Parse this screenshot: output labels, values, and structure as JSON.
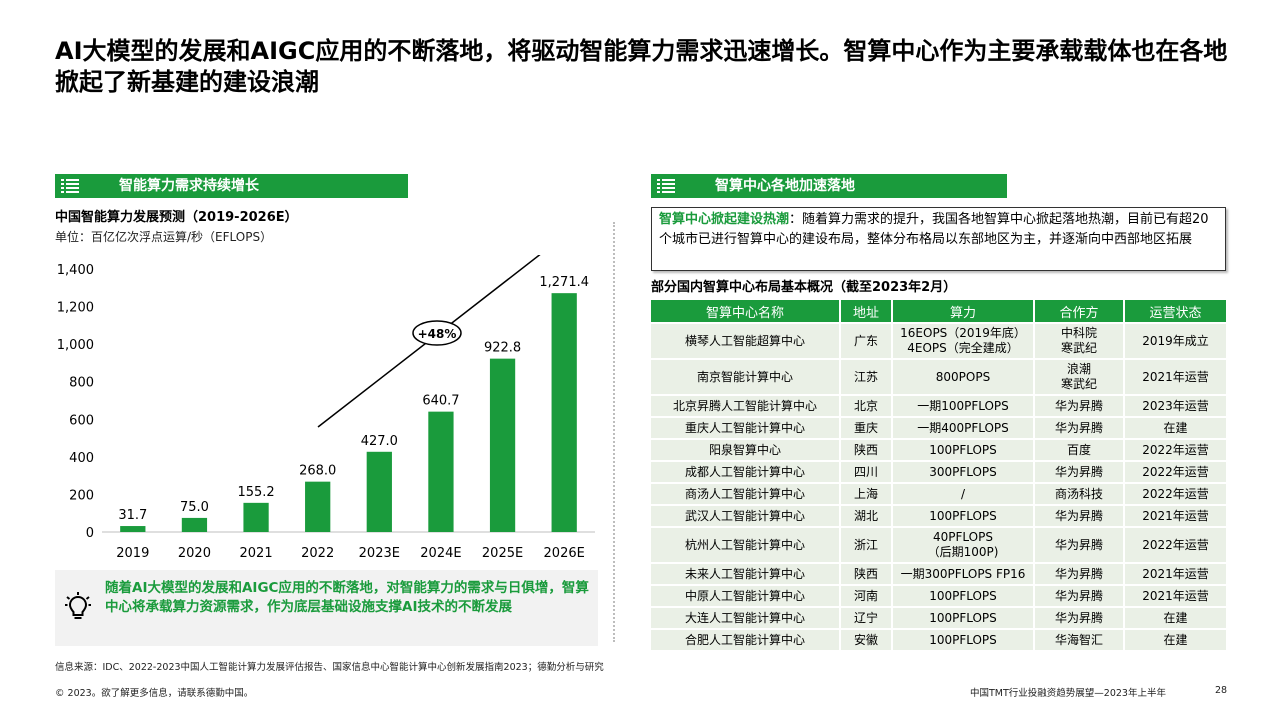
{
  "page": {
    "title": "AI大模型的发展和AIGC应用的不断落地，将驱动智能算力需求迅速增长。智算中心作为主要承载载体也在各地掀起了新基建的建设浪潮"
  },
  "left_section": {
    "header": "智能算力需求持续增长",
    "icon": "list-icon",
    "chart_title": "中国智能算力发展预测（2019-2026E）",
    "chart_unit": "单位：百亿亿次浮点运算/秒（EFLOPS）",
    "growth_label": "+48%",
    "insight_icon": "lightbulb-icon",
    "insight": "随着AI大模型的发展和AIGC应用的不断落地，对智能算力的需求与日俱增，智算中心将承载算力资源需求，作为底层基础设施支撑AI技术的不断发展"
  },
  "chart_data": {
    "type": "bar",
    "title": "中国智能算力发展预测（2019-2026E）",
    "ylabel": "单位：百亿亿次浮点运算/秒（EFLOPS）",
    "categories": [
      "2019",
      "2020",
      "2021",
      "2022",
      "2023E",
      "2024E",
      "2025E",
      "2026E"
    ],
    "values": [
      31.7,
      75.0,
      155.2,
      268.0,
      427.0,
      640.7,
      922.8,
      1271.4
    ],
    "value_labels": [
      "31.7",
      "75.0",
      "155.2",
      "268.0",
      "427.0",
      "640.7",
      "922.8",
      "1,271.4"
    ],
    "ylim": [
      0,
      1400
    ],
    "yticks": [
      0,
      200,
      400,
      600,
      800,
      1000,
      1200,
      1400
    ],
    "ytick_labels": [
      "0",
      "200",
      "400",
      "600",
      "800",
      "1,000",
      "1,200",
      "1,400"
    ],
    "annotation": "+48%",
    "bar_color": "#1a9b3c",
    "grid": false
  },
  "right_section": {
    "header": "智算中心各地加速落地",
    "icon": "list-icon",
    "callout_highlight": "智算中心掀起建设热潮",
    "callout_text": "：随着算力需求的提升，我国各地智算中心掀起落地热潮，目前已有超20个城市已进行智算中心的建设布局，整体分布格局以东部地区为主，并逐渐向中西部地区拓展",
    "table_title": "部分国内智算中心布局基本概况（截至2023年2月）",
    "columns": [
      "智算中心名称",
      "地址",
      "算力",
      "合作方",
      "运营状态"
    ],
    "rows": [
      [
        "横琴人工智能超算中心",
        "广东",
        "16EOPS（2019年底）\n4EOPS（完全建成）",
        "中科院\n寒武纪",
        "2019年成立"
      ],
      [
        "南京智能计算中心",
        "江苏",
        "800POPS",
        "浪潮\n寒武纪",
        "2021年运营"
      ],
      [
        "北京昇腾人工智能计算中心",
        "北京",
        "一期100PFLOPS",
        "华为昇腾",
        "2023年运营"
      ],
      [
        "重庆人工智能计算中心",
        "重庆",
        "一期400PFLOPS",
        "华为昇腾",
        "在建"
      ],
      [
        "阳泉智算中心",
        "陕西",
        "100PFLOPS",
        "百度",
        "2022年运营"
      ],
      [
        "成都人工智能计算中心",
        "四川",
        "300PFLOPS",
        "华为昇腾",
        "2022年运营"
      ],
      [
        "商汤人工智能计算中心",
        "上海",
        "/",
        "商汤科技",
        "2022年运营"
      ],
      [
        "武汉人工智能计算中心",
        "湖北",
        "100PFLOPS",
        "华为昇腾",
        "2021年运营"
      ],
      [
        "杭州人工智能计算中心",
        "浙江",
        "40PFLOPS\n（后期100P)",
        "华为昇腾",
        "2022年运营"
      ],
      [
        "未来人工智能计算中心",
        "陕西",
        "一期300PFLOPS FP16",
        "华为昇腾",
        "2021年运营"
      ],
      [
        "中原人工智能计算中心",
        "河南",
        "100PFLOPS",
        "华为昇腾",
        "2021年运营"
      ],
      [
        "大连人工智能计算中心",
        "辽宁",
        "100PFLOPS",
        "华为昇腾",
        "在建"
      ],
      [
        "合肥人工智能计算中心",
        "安徽",
        "100PFLOPS",
        "华海智汇",
        "在建"
      ]
    ]
  },
  "footer": {
    "source": "信息来源：IDC、2022-2023中国人工智能计算力发展评估报告、国家信息中心智能计算中心创新发展指南2023；德勤分析与研究",
    "copyright": "© 2023。欲了解更多信息，请联系德勤中国。",
    "report": "中国TMT行业投融资趋势展望—2023年上半年",
    "page_number": "28"
  },
  "colors": {
    "accent": "#1a9b3c",
    "table_row": "#eaf0e6",
    "insight_bg": "#f2f2f2"
  }
}
